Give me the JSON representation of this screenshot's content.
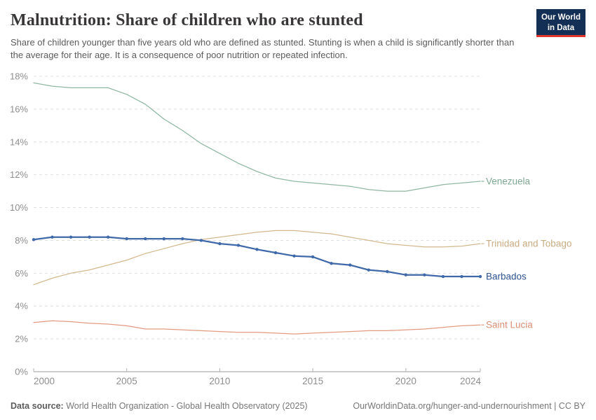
{
  "header": {
    "title": "Malnutrition: Share of children who are stunted",
    "logo": {
      "line1": "Our World",
      "line2": "in Data",
      "bg_color": "#132F55",
      "accent_color": "#E0362C"
    }
  },
  "subtitle": "Share of children younger than five years old who are defined as stunted. Stunting is when a child is significantly shorter than the average for their age. It is a consequence of poor nutrition or repeated infection.",
  "footer": {
    "source_label": "Data source:",
    "source_text": " World Health Organization - Global Health Observatory (2025)",
    "credit": "OurWorldinData.org/hunger-and-undernourishment | CC BY"
  },
  "chart_data": {
    "type": "line",
    "title": "Malnutrition: Share of children who are stunted",
    "xlabel": "",
    "ylabel": "",
    "x": [
      2000,
      2001,
      2002,
      2003,
      2004,
      2005,
      2006,
      2007,
      2008,
      2009,
      2010,
      2011,
      2012,
      2013,
      2014,
      2015,
      2016,
      2017,
      2018,
      2019,
      2020,
      2021,
      2022,
      2023,
      2024
    ],
    "series": [
      {
        "name": "Venezuela",
        "color": "#8FB8A3",
        "label_color": "#7FA893",
        "width": 1.25,
        "markers": false,
        "values": [
          17.6,
          17.4,
          17.3,
          17.3,
          17.3,
          16.9,
          16.3,
          15.4,
          14.7,
          13.9,
          13.3,
          12.7,
          12.2,
          11.8,
          11.6,
          11.5,
          11.4,
          11.3,
          11.1,
          11.0,
          11.0,
          11.2,
          11.4,
          11.5,
          11.6
        ]
      },
      {
        "name": "Trinidad and Tobago",
        "color": "#D3B88E",
        "label_color": "#C9AC82",
        "width": 1.25,
        "markers": false,
        "values": [
          5.3,
          5.7,
          6.0,
          6.2,
          6.5,
          6.8,
          7.2,
          7.5,
          7.8,
          8.05,
          8.2,
          8.35,
          8.5,
          8.6,
          8.6,
          8.5,
          8.4,
          8.2,
          8.0,
          7.8,
          7.7,
          7.6,
          7.6,
          7.65,
          7.8
        ]
      },
      {
        "name": "Barbados",
        "color": "#3F69A8",
        "label_color": "#2E538F",
        "width": 2.25,
        "markers": true,
        "values": [
          8.05,
          8.2,
          8.2,
          8.2,
          8.2,
          8.1,
          8.1,
          8.1,
          8.1,
          8.0,
          7.8,
          7.7,
          7.45,
          7.25,
          7.05,
          7.0,
          6.6,
          6.5,
          6.2,
          6.1,
          5.9,
          5.9,
          5.8,
          5.8,
          5.8
        ]
      },
      {
        "name": "Saint Lucia",
        "color": "#E39A81",
        "label_color": "#DB8F74",
        "width": 1.25,
        "markers": false,
        "values": [
          3.0,
          3.1,
          3.05,
          2.95,
          2.9,
          2.8,
          2.6,
          2.6,
          2.55,
          2.5,
          2.45,
          2.4,
          2.4,
          2.35,
          2.3,
          2.35,
          2.4,
          2.45,
          2.5,
          2.5,
          2.55,
          2.6,
          2.7,
          2.8,
          2.85
        ]
      }
    ],
    "ylim": [
      0,
      18
    ],
    "yticks": [
      0,
      2,
      4,
      6,
      8,
      10,
      12,
      14,
      16,
      18
    ],
    "ytick_suffix": "%",
    "xticks": [
      2000,
      2005,
      2010,
      2015,
      2020,
      2024
    ],
    "grid": "horizontal-dashed",
    "legend_position": "line-end-labels-right"
  },
  "axis_style": {
    "grid_color": "#e0e0e0",
    "axis_color": "#9a9a9a",
    "tick_color": "#b3b3b3",
    "label_color": "#8e8e8e"
  }
}
